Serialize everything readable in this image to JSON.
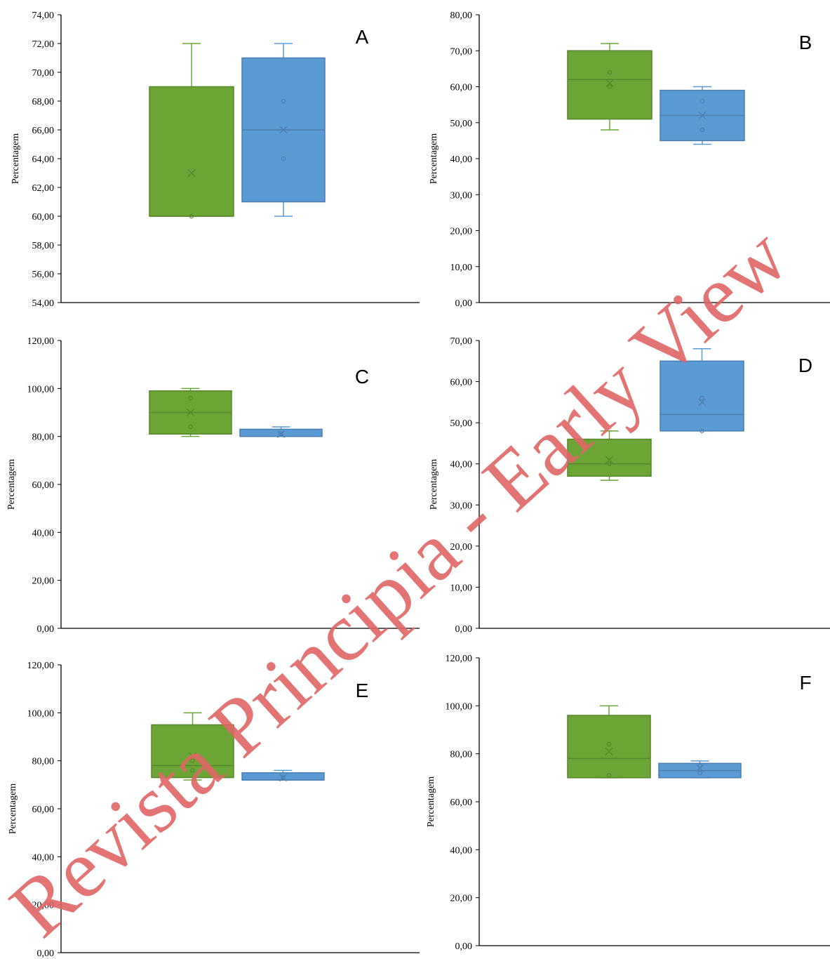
{
  "chart_data": [
    {
      "panel": "A",
      "type": "box",
      "ylabel": "Percentagem",
      "ylim": [
        54,
        74
      ],
      "yticks": [
        "54,00",
        "56,00",
        "58,00",
        "60,00",
        "62,00",
        "64,00",
        "66,00",
        "68,00",
        "70,00",
        "72,00",
        "74,00"
      ],
      "series": [
        {
          "color": "#6aa535",
          "min": 60,
          "q1": 60,
          "median": 60,
          "q3": 69,
          "max": 72,
          "mean": 63,
          "points": [
            60
          ]
        },
        {
          "color": "#5b9bd5",
          "min": 60,
          "q1": 61,
          "median": 66,
          "q3": 71,
          "max": 72,
          "mean": 66,
          "points": [
            68,
            64
          ]
        }
      ]
    },
    {
      "panel": "B",
      "type": "box",
      "ylabel": "Percentagem",
      "ylim": [
        0,
        80
      ],
      "yticks": [
        "0,00",
        "10,00",
        "20,00",
        "30,00",
        "40,00",
        "50,00",
        "60,00",
        "70,00",
        "80,00"
      ],
      "series": [
        {
          "color": "#6aa535",
          "min": 48,
          "q1": 51,
          "median": 62,
          "q3": 70,
          "max": 72,
          "mean": 61,
          "points": [
            64,
            60
          ]
        },
        {
          "color": "#5b9bd5",
          "min": 44,
          "q1": 45,
          "median": 52,
          "q3": 59,
          "max": 60,
          "mean": 52,
          "points": [
            56,
            48
          ]
        }
      ]
    },
    {
      "panel": "C",
      "type": "box",
      "ylabel": "Percentagem",
      "ylim": [
        0,
        120
      ],
      "yticks": [
        "0,00",
        "20,00",
        "40,00",
        "60,00",
        "80,00",
        "100,00",
        "120,00"
      ],
      "series": [
        {
          "color": "#6aa535",
          "min": 80,
          "q1": 81,
          "median": 90,
          "q3": 99,
          "max": 100,
          "mean": 90,
          "points": [
            96,
            84
          ]
        },
        {
          "color": "#5b9bd5",
          "min": 80,
          "q1": 80,
          "median": 80,
          "q3": 83,
          "max": 84,
          "mean": 81,
          "points": [
            81
          ]
        }
      ]
    },
    {
      "panel": "D",
      "type": "box",
      "ylabel": "Percentagem",
      "ylim": [
        0,
        70
      ],
      "yticks": [
        "0,00",
        "10,00",
        "20,00",
        "30,00",
        "40,00",
        "50,00",
        "60,00",
        "70,00"
      ],
      "series": [
        {
          "color": "#6aa535",
          "min": 36,
          "q1": 37,
          "median": 40,
          "q3": 46,
          "max": 48,
          "mean": 41,
          "points": [
            40
          ]
        },
        {
          "color": "#5b9bd5",
          "min": 48,
          "q1": 48,
          "median": 52,
          "q3": 65,
          "max": 68,
          "mean": 55,
          "points": [
            56,
            48
          ]
        }
      ]
    },
    {
      "panel": "E",
      "type": "box",
      "ylabel": "Percentagem",
      "ylim": [
        0,
        120
      ],
      "yticks": [
        "0,00",
        "20,00",
        "40,00",
        "60,00",
        "80,00",
        "100,00",
        "120,00"
      ],
      "series": [
        {
          "color": "#6aa535",
          "min": 72,
          "q1": 73,
          "median": 78,
          "q3": 95,
          "max": 100,
          "mean": 82,
          "points": [
            80,
            76
          ]
        },
        {
          "color": "#5b9bd5",
          "min": 72,
          "q1": 72,
          "median": 72,
          "q3": 75,
          "max": 76,
          "mean": 73,
          "points": [
            73
          ]
        }
      ]
    },
    {
      "panel": "F",
      "type": "box",
      "ylabel": "Percentagem",
      "ylim": [
        0,
        120
      ],
      "yticks": [
        "0,00",
        "20,00",
        "40,00",
        "60,00",
        "80,00",
        "100,00",
        "120,00"
      ],
      "series": [
        {
          "color": "#6aa535",
          "min": 70,
          "q1": 70,
          "median": 78,
          "q3": 96,
          "max": 100,
          "mean": 81,
          "points": [
            84,
            71
          ]
        },
        {
          "color": "#5b9bd5",
          "min": 70,
          "q1": 70,
          "median": 73,
          "q3": 76,
          "max": 77,
          "mean": 74,
          "points": [
            75,
            72
          ]
        }
      ]
    }
  ],
  "watermark": {
    "text": "Revista Principia - Early View",
    "color": "#e06666"
  }
}
